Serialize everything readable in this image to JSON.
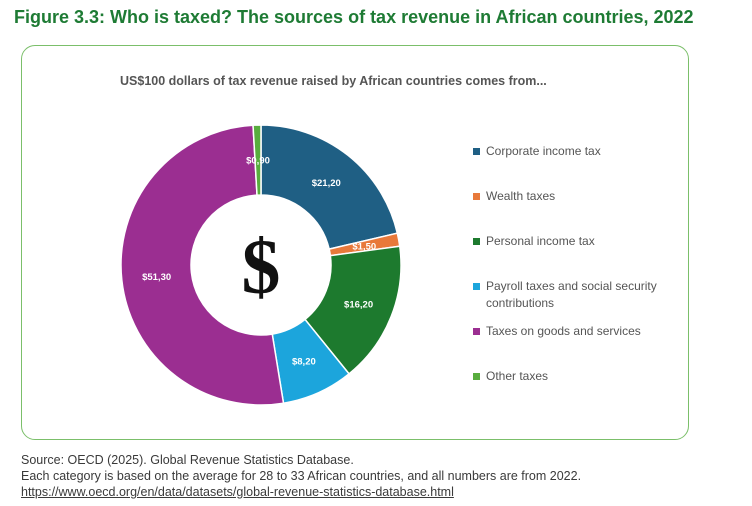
{
  "figure": {
    "title": "Figure 3.3: Who is taxed? The sources of tax revenue in African countries, 2022"
  },
  "chart_data": {
    "type": "pie",
    "title": "US$100 dollars of tax revenue raised by African countries comes from...",
    "center_symbol": "$",
    "legend_position": "right",
    "slices": [
      {
        "name": "Corporate income tax",
        "value": 21.2,
        "label": "$21,20",
        "color": "#1f5f84"
      },
      {
        "name": "Wealth taxes",
        "value": 1.5,
        "label": "$1,50",
        "color": "#e8793a"
      },
      {
        "name": "Personal income tax",
        "value": 16.2,
        "label": "$16,20",
        "color": "#1d7a2e"
      },
      {
        "name": "Payroll taxes and social security contributions",
        "value": 8.2,
        "label": "$8,20",
        "color": "#1ca5dc"
      },
      {
        "name": "Taxes on goods and services",
        "value": 51.3,
        "label": "$51,30",
        "color": "#9b2e91"
      },
      {
        "name": "Other taxes",
        "value": 0.9,
        "label": "$0,90",
        "color": "#58ad3e"
      }
    ]
  },
  "notes": {
    "source": "Source: OECD (2025). Global Revenue Statistics Database.",
    "detail": "Each category is based on the average for 28 to 33 African countries, and all numbers are from 2022.",
    "link": "https://www.oecd.org/en/data/datasets/global-revenue-statistics-database.html"
  }
}
